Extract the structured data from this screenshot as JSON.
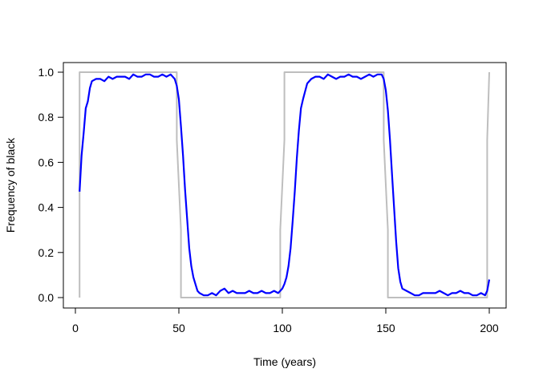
{
  "chart_data": {
    "type": "line",
    "title": "",
    "xlabel": "Time (years)",
    "ylabel": "Frequency of black",
    "xlim": [
      0,
      202
    ],
    "ylim": [
      -0.02,
      1.04
    ],
    "xticks": [
      0,
      50,
      100,
      150,
      200
    ],
    "yticks": [
      0.0,
      0.2,
      0.4,
      0.6,
      0.8,
      1.0
    ],
    "ytick_labels": [
      "0.0",
      "0.2",
      "0.4",
      "0.6",
      "0.8",
      "1.0"
    ],
    "grid": false,
    "legend": "none",
    "series": [
      {
        "color": "#bebebe",
        "x": [
          2,
          2,
          49,
          49,
          51,
          51,
          99,
          99,
          101,
          101,
          149,
          149,
          151,
          151,
          199,
          199,
          200
        ],
        "y": [
          0,
          1,
          1,
          0.7,
          0.3,
          0,
          0,
          0.3,
          0.7,
          1,
          1,
          0.7,
          0.3,
          0,
          0,
          0.7,
          1
        ]
      },
      {
        "color": "#0000ff",
        "x": [
          2,
          3,
          4,
          5,
          6,
          7,
          8,
          10,
          12,
          14,
          16,
          18,
          20,
          22,
          24,
          26,
          28,
          30,
          32,
          34,
          36,
          38,
          40,
          42,
          44,
          46,
          48,
          49,
          50,
          51,
          52,
          53,
          54,
          55,
          56,
          57,
          58,
          59,
          60,
          62,
          64,
          66,
          68,
          70,
          72,
          74,
          76,
          78,
          80,
          82,
          84,
          86,
          88,
          90,
          92,
          94,
          96,
          98,
          99,
          100,
          101,
          102,
          103,
          104,
          105,
          106,
          107,
          108,
          109,
          110,
          112,
          114,
          116,
          118,
          120,
          122,
          124,
          126,
          128,
          130,
          132,
          134,
          136,
          138,
          140,
          142,
          144,
          146,
          148,
          149,
          150,
          151,
          152,
          153,
          154,
          155,
          156,
          157,
          158,
          160,
          162,
          164,
          166,
          168,
          170,
          172,
          174,
          176,
          178,
          180,
          182,
          184,
          186,
          188,
          190,
          192,
          194,
          196,
          198,
          199,
          200
        ],
        "y": [
          0.47,
          0.63,
          0.73,
          0.84,
          0.87,
          0.93,
          0.96,
          0.97,
          0.97,
          0.96,
          0.98,
          0.97,
          0.98,
          0.98,
          0.98,
          0.97,
          0.99,
          0.98,
          0.98,
          0.99,
          0.99,
          0.98,
          0.98,
          0.99,
          0.98,
          0.99,
          0.97,
          0.94,
          0.88,
          0.76,
          0.63,
          0.48,
          0.35,
          0.22,
          0.14,
          0.09,
          0.06,
          0.03,
          0.02,
          0.01,
          0.01,
          0.02,
          0.01,
          0.03,
          0.04,
          0.02,
          0.03,
          0.02,
          0.02,
          0.02,
          0.03,
          0.02,
          0.02,
          0.03,
          0.02,
          0.02,
          0.03,
          0.02,
          0.03,
          0.04,
          0.06,
          0.09,
          0.14,
          0.22,
          0.34,
          0.47,
          0.62,
          0.74,
          0.84,
          0.88,
          0.95,
          0.97,
          0.98,
          0.98,
          0.97,
          0.99,
          0.98,
          0.97,
          0.98,
          0.98,
          0.99,
          0.98,
          0.98,
          0.97,
          0.98,
          0.99,
          0.98,
          0.99,
          0.99,
          0.97,
          0.92,
          0.83,
          0.7,
          0.55,
          0.4,
          0.25,
          0.13,
          0.07,
          0.04,
          0.03,
          0.02,
          0.01,
          0.01,
          0.02,
          0.02,
          0.02,
          0.02,
          0.03,
          0.02,
          0.01,
          0.02,
          0.02,
          0.03,
          0.02,
          0.02,
          0.01,
          0.01,
          0.02,
          0.01,
          0.03,
          0.08
        ]
      }
    ]
  }
}
